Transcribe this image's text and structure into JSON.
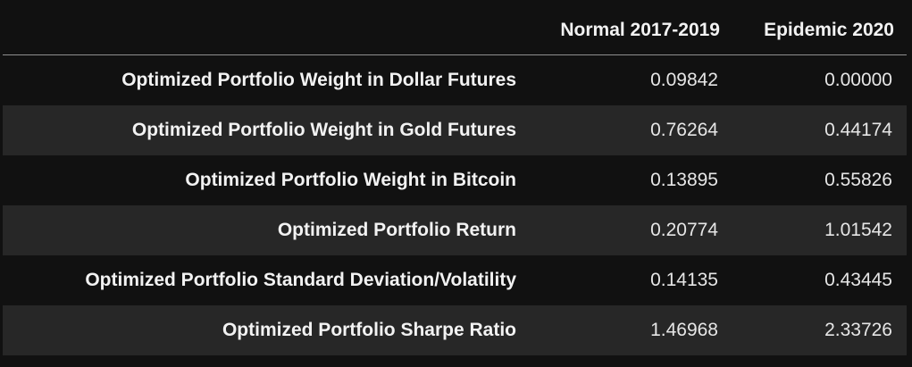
{
  "columns": [
    "",
    "Normal 2017-2019",
    "Epidemic 2020"
  ],
  "rows": [
    {
      "label": "Optimized Portfolio Weight in Dollar Futures",
      "normal": "0.09842",
      "epidemic": "0.00000"
    },
    {
      "label": "Optimized Portfolio Weight in Gold Futures",
      "normal": "0.76264",
      "epidemic": "0.44174"
    },
    {
      "label": "Optimized Portfolio Weight in Bitcoin",
      "normal": "0.13895",
      "epidemic": "0.55826"
    },
    {
      "label": "Optimized Portfolio Return",
      "normal": "0.20774",
      "epidemic": "1.01542"
    },
    {
      "label": "Optimized Portfolio Standard Deviation/Volatility",
      "normal": "0.14135",
      "epidemic": "0.43445"
    },
    {
      "label": "Optimized Portfolio Sharpe Ratio",
      "normal": "1.46968",
      "epidemic": "2.33726"
    }
  ],
  "colors": {
    "background": "#111111",
    "row_stripe": "#272727",
    "text": "#eaeaea",
    "header_rule": "#8f8f8f"
  }
}
